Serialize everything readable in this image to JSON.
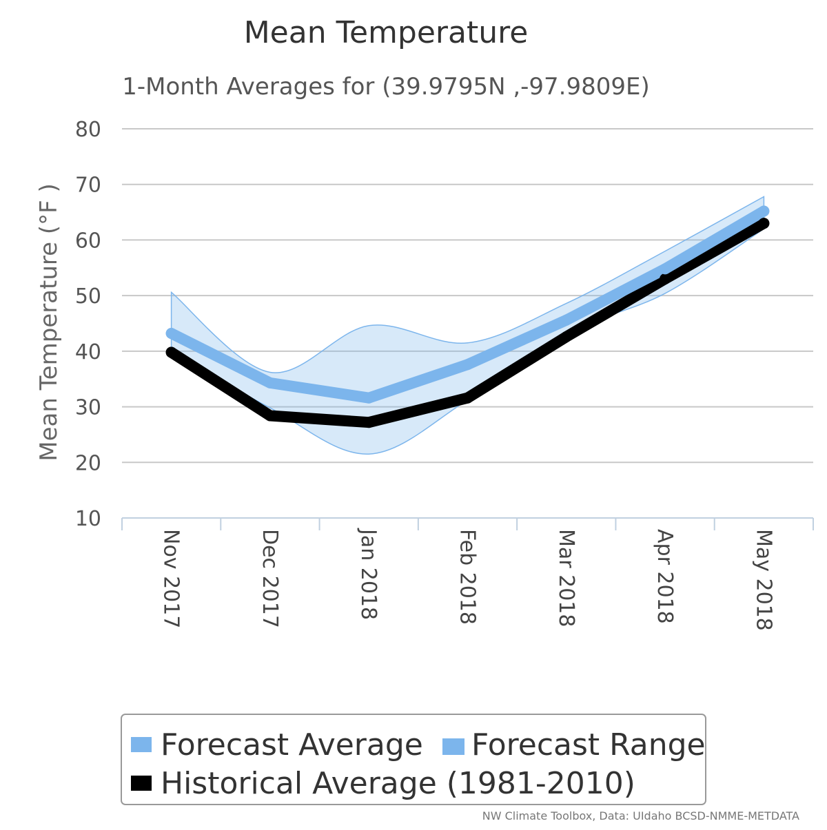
{
  "chart_data": {
    "type": "line",
    "title": "Mean Temperature",
    "subtitle": "1-Month Averages for (39.9795N ,-97.9809E)",
    "ylabel": "Mean Temperature (°F )",
    "xlabel": "",
    "ylim": [
      10,
      80
    ],
    "yticks": [
      10,
      20,
      30,
      40,
      50,
      60,
      70,
      80
    ],
    "grid": true,
    "categories": [
      "Nov 2017",
      "Dec 2017",
      "Jan 2018",
      "Feb 2018",
      "Mar 2018",
      "Apr 2018",
      "May 2018"
    ],
    "series": [
      {
        "name": "Forecast Average",
        "type": "line",
        "color": "#7cb5ec",
        "values": [
          43.2,
          34.3,
          31.6,
          37.6,
          45.6,
          54.8,
          65.2
        ]
      },
      {
        "name": "Forecast Range",
        "type": "arearange",
        "color": "#7cb5ec",
        "low": [
          40.0,
          29.8,
          21.5,
          31.2,
          43.2,
          50.4,
          62.0
        ],
        "high": [
          50.6,
          36.2,
          44.6,
          41.5,
          48.6,
          58.0,
          67.8
        ]
      },
      {
        "name": "Historical Average (1981-2010)",
        "type": "line",
        "color": "#000000",
        "values": [
          39.8,
          28.4,
          27.2,
          31.6,
          42.6,
          53.0,
          63.0
        ]
      }
    ],
    "legend_position": "bottom-center"
  },
  "credits": "NW Climate Toolbox, Data: UIdaho BCSD-NMME-METDATA"
}
